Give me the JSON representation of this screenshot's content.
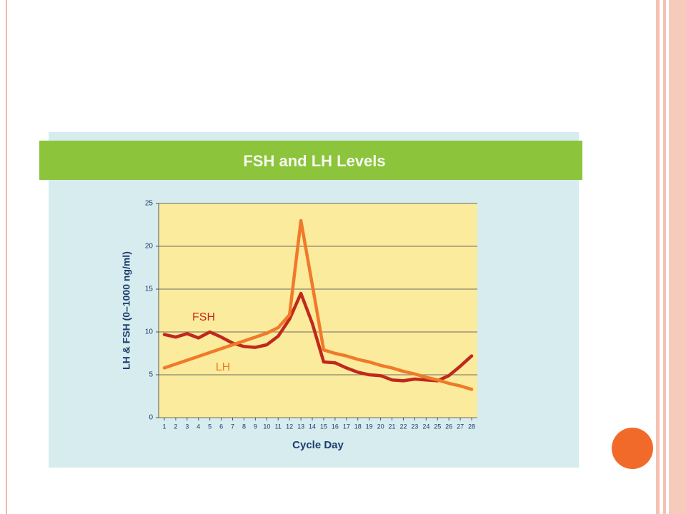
{
  "chart_data": {
    "type": "line",
    "title": "FSH and LH Levels",
    "x_label": "Cycle Day",
    "y_label": "LH & FSH (0–1000 ng/ml)",
    "x": [
      1,
      2,
      3,
      4,
      5,
      6,
      7,
      8,
      9,
      10,
      11,
      12,
      13,
      14,
      15,
      16,
      17,
      18,
      19,
      20,
      21,
      22,
      23,
      24,
      25,
      26,
      27,
      28
    ],
    "xlim": [
      0.5,
      28.5
    ],
    "xticks": [
      1,
      2,
      3,
      4,
      5,
      6,
      7,
      8,
      9,
      10,
      11,
      12,
      13,
      14,
      15,
      16,
      17,
      18,
      19,
      20,
      21,
      22,
      23,
      24,
      25,
      26,
      27,
      28
    ],
    "ylim": [
      0,
      25
    ],
    "yticks": [
      0,
      5,
      10,
      15,
      20,
      25
    ],
    "grid": true,
    "series": [
      {
        "name": "FSH",
        "color": "#c0281c",
        "values": [
          9.7,
          9.4,
          9.8,
          9.3,
          10,
          9.4,
          8.7,
          8.3,
          8.2,
          8.5,
          9.5,
          11.5,
          14.5,
          11,
          6.5,
          6.4,
          5.8,
          5.3,
          5,
          4.9,
          4.4,
          4.3,
          4.5,
          4.4,
          4.3,
          4.9,
          6,
          7.2
        ]
      },
      {
        "name": "LH",
        "color": "#f07a2a",
        "values": [
          5.8,
          6.25,
          6.7,
          7.15,
          7.6,
          8.05,
          8.5,
          8.95,
          9.4,
          9.85,
          10.5,
          12,
          23,
          15.5,
          7.9,
          7.5,
          7.2,
          6.8,
          6.5,
          6.1,
          5.8,
          5.4,
          5.1,
          4.7,
          4.4,
          4,
          3.7,
          3.3
        ]
      }
    ]
  }
}
